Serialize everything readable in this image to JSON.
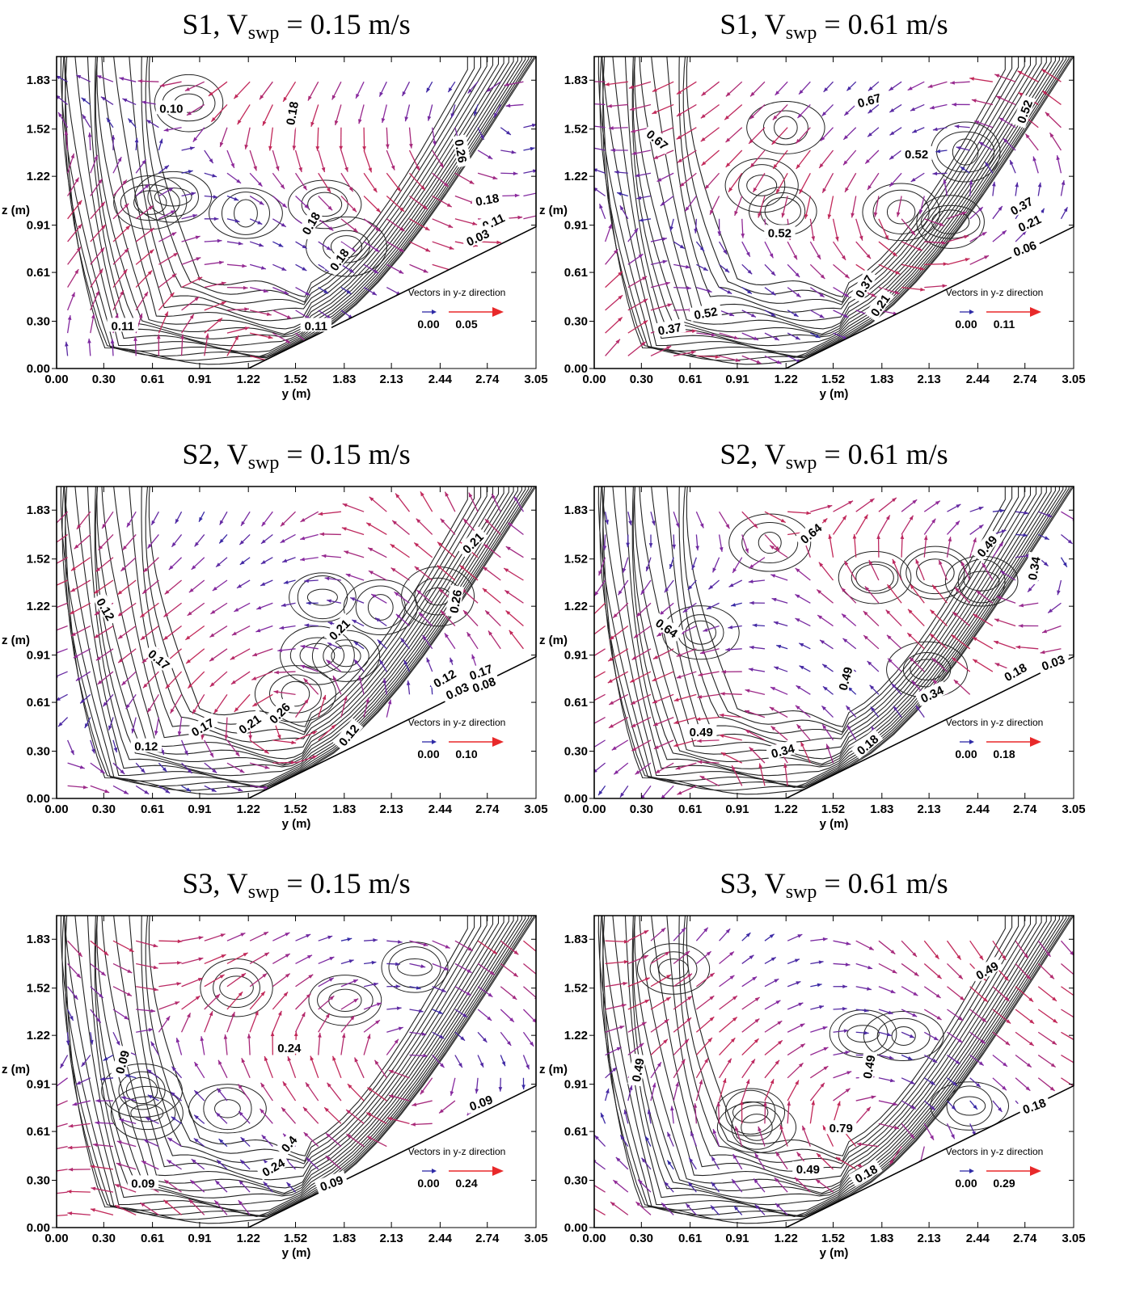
{
  "chart_data": [
    {
      "type": "contour",
      "title": "S1, Vswp = 0.15 m/s",
      "title_parts": {
        "main": "S1, V",
        "sub": "swp",
        "rest": " = 0.15 m/s"
      },
      "xlabel": "y (m)",
      "ylabel": "z (m)",
      "xlim": [
        0,
        3.05
      ],
      "ylim": [
        0,
        1.98
      ],
      "xticks": [
        "0.00",
        "0.30",
        "0.61",
        "0.91",
        "1.22",
        "1.52",
        "1.83",
        "2.13",
        "2.44",
        "2.74",
        "3.05"
      ],
      "yticks": [
        "0.00",
        "0.30",
        "0.61",
        "0.91",
        "1.22",
        "1.52",
        "1.83"
      ],
      "boundary_bottom": {
        "y_start": 1.22,
        "y_end": 3.05,
        "z_end": 0.9
      },
      "contour_labels": [
        {
          "text": "0.10",
          "y": 0.73,
          "z": 1.65,
          "rot": 0
        },
        {
          "text": "0.18",
          "y": 1.5,
          "z": 1.62,
          "rot": -80
        },
        {
          "text": "0.26",
          "y": 2.57,
          "z": 1.38,
          "rot": 80
        },
        {
          "text": "0.18",
          "y": 2.74,
          "z": 1.07,
          "rot": -10
        },
        {
          "text": "0.11",
          "y": 2.78,
          "z": 0.93,
          "rot": -25
        },
        {
          "text": "0.03",
          "y": 2.68,
          "z": 0.83,
          "rot": -25
        },
        {
          "text": "0.18",
          "y": 1.62,
          "z": 0.92,
          "rot": -60
        },
        {
          "text": "0.18",
          "y": 1.8,
          "z": 0.69,
          "rot": -55
        },
        {
          "text": "0.11",
          "y": 0.42,
          "z": 0.27,
          "rot": 0
        },
        {
          "text": "0.11",
          "y": 1.65,
          "z": 0.27,
          "rot": 0
        }
      ],
      "vector_legend": {
        "title": "Vectors in y-z direction",
        "min": "0.00",
        "max": "0.05"
      }
    },
    {
      "type": "contour",
      "title": "S1, Vswp = 0.61 m/s",
      "title_parts": {
        "main": "S1, V",
        "sub": "swp",
        "rest": " = 0.61 m/s"
      },
      "xlabel": "y (m)",
      "ylabel": "z (m)",
      "xlim": [
        0,
        3.05
      ],
      "ylim": [
        0,
        1.98
      ],
      "xticks": [
        "0.00",
        "0.30",
        "0.61",
        "0.91",
        "1.22",
        "1.52",
        "1.83",
        "2.13",
        "2.44",
        "2.74",
        "3.05"
      ],
      "yticks": [
        "0.00",
        "0.30",
        "0.61",
        "0.91",
        "1.22",
        "1.52",
        "1.83"
      ],
      "boundary_bottom": {
        "y_start": 1.22,
        "y_end": 3.05,
        "z_end": 0.9
      },
      "contour_labels": [
        {
          "text": "0.67",
          "y": 1.75,
          "z": 1.7,
          "rot": -15
        },
        {
          "text": "0.52",
          "y": 2.74,
          "z": 1.63,
          "rot": -70
        },
        {
          "text": "0.67",
          "y": 0.4,
          "z": 1.45,
          "rot": 40
        },
        {
          "text": "0.52",
          "y": 2.05,
          "z": 1.36,
          "rot": 0
        },
        {
          "text": "0.37",
          "y": 2.72,
          "z": 1.03,
          "rot": -30
        },
        {
          "text": "0.21",
          "y": 2.77,
          "z": 0.92,
          "rot": -25
        },
        {
          "text": "0.06",
          "y": 2.74,
          "z": 0.76,
          "rot": -20
        },
        {
          "text": "0.52",
          "y": 1.18,
          "z": 0.86,
          "rot": 0
        },
        {
          "text": "0.37",
          "y": 1.72,
          "z": 0.52,
          "rot": -60
        },
        {
          "text": "0.21",
          "y": 1.82,
          "z": 0.4,
          "rot": -55
        },
        {
          "text": "0.52",
          "y": 0.71,
          "z": 0.35,
          "rot": -10
        },
        {
          "text": "0.37",
          "y": 0.48,
          "z": 0.25,
          "rot": -10
        }
      ],
      "vector_legend": {
        "title": "Vectors in y-z direction",
        "min": "0.00",
        "max": "0.11"
      }
    },
    {
      "type": "contour",
      "title": "S2, Vswp = 0.15 m/s",
      "title_parts": {
        "main": "S2, V",
        "sub": "swp",
        "rest": " = 0.15 m/s"
      },
      "xlabel": "y (m)",
      "ylabel": "z (m)",
      "xlim": [
        0,
        3.05
      ],
      "ylim": [
        0,
        1.98
      ],
      "xticks": [
        "0.00",
        "0.30",
        "0.61",
        "0.91",
        "1.22",
        "1.52",
        "1.83",
        "2.13",
        "2.44",
        "2.74",
        "3.05"
      ],
      "yticks": [
        "0.00",
        "0.30",
        "0.61",
        "0.91",
        "1.22",
        "1.52",
        "1.83"
      ],
      "boundary_bottom": {
        "y_start": 1.22,
        "y_end": 3.05,
        "z_end": 0.9
      },
      "contour_labels": [
        {
          "text": "0.21",
          "y": 2.65,
          "z": 1.62,
          "rot": -45
        },
        {
          "text": "0.12",
          "y": 0.31,
          "z": 1.2,
          "rot": 60
        },
        {
          "text": "0.26",
          "y": 2.54,
          "z": 1.25,
          "rot": -80
        },
        {
          "text": "0.21",
          "y": 1.8,
          "z": 1.07,
          "rot": -45
        },
        {
          "text": "0.17",
          "y": 0.65,
          "z": 0.88,
          "rot": 40
        },
        {
          "text": "0.12",
          "y": 2.47,
          "z": 0.76,
          "rot": -30
        },
        {
          "text": "0.17",
          "y": 2.7,
          "z": 0.8,
          "rot": -20
        },
        {
          "text": "0.03",
          "y": 2.55,
          "z": 0.68,
          "rot": -25
        },
        {
          "text": "0.08",
          "y": 2.72,
          "z": 0.72,
          "rot": -20
        },
        {
          "text": "0.26",
          "y": 1.42,
          "z": 0.54,
          "rot": -45
        },
        {
          "text": "0.21",
          "y": 1.23,
          "z": 0.47,
          "rot": -35
        },
        {
          "text": "0.17",
          "y": 0.93,
          "z": 0.45,
          "rot": -30
        },
        {
          "text": "0.12",
          "y": 1.86,
          "z": 0.4,
          "rot": -50
        },
        {
          "text": "0.12",
          "y": 0.57,
          "z": 0.33,
          "rot": 0
        }
      ],
      "vector_legend": {
        "title": "Vectors in y-z direction",
        "min": "0.00",
        "max": "0.10"
      }
    },
    {
      "type": "contour",
      "title": "S2, Vswp = 0.61 m/s",
      "title_parts": {
        "main": "S2, V",
        "sub": "swp",
        "rest": " = 0.61 m/s"
      },
      "xlabel": "y (m)",
      "ylabel": "z (m)",
      "xlim": [
        0,
        3.05
      ],
      "ylim": [
        0,
        1.98
      ],
      "xticks": [
        "0.00",
        "0.30",
        "0.61",
        "0.91",
        "1.22",
        "1.52",
        "1.83",
        "2.13",
        "2.44",
        "2.74",
        "3.05"
      ],
      "yticks": [
        "0.00",
        "0.30",
        "0.61",
        "0.91",
        "1.22",
        "1.52",
        "1.83"
      ],
      "boundary_bottom": {
        "y_start": 1.22,
        "y_end": 3.05,
        "z_end": 0.9
      },
      "contour_labels": [
        {
          "text": "0.64",
          "y": 1.38,
          "z": 1.68,
          "rot": -40
        },
        {
          "text": "0.49",
          "y": 2.5,
          "z": 1.6,
          "rot": -50
        },
        {
          "text": "0.34",
          "y": 2.8,
          "z": 1.46,
          "rot": -80
        },
        {
          "text": "0.64",
          "y": 0.46,
          "z": 1.08,
          "rot": 35
        },
        {
          "text": "0.49",
          "y": 1.6,
          "z": 0.76,
          "rot": -75
        },
        {
          "text": "0.18",
          "y": 2.68,
          "z": 0.8,
          "rot": -30
        },
        {
          "text": "0.03",
          "y": 2.92,
          "z": 0.86,
          "rot": -20
        },
        {
          "text": "0.34",
          "y": 2.15,
          "z": 0.66,
          "rot": -25
        },
        {
          "text": "0.49",
          "y": 0.68,
          "z": 0.42,
          "rot": 0
        },
        {
          "text": "0.34",
          "y": 1.2,
          "z": 0.3,
          "rot": -15
        },
        {
          "text": "0.18",
          "y": 1.74,
          "z": 0.34,
          "rot": -40
        }
      ],
      "vector_legend": {
        "title": "Vectors in y-z direction",
        "min": "0.00",
        "max": "0.18"
      }
    },
    {
      "type": "contour",
      "title": "S3, Vswp = 0.15 m/s",
      "title_parts": {
        "main": "S3, V",
        "sub": "swp",
        "rest": " = 0.15 m/s"
      },
      "xlabel": "y (m)",
      "ylabel": "z (m)",
      "xlim": [
        0,
        3.05
      ],
      "ylim": [
        0,
        1.98
      ],
      "xticks": [
        "0.00",
        "0.30",
        "0.61",
        "0.91",
        "1.22",
        "1.52",
        "1.83",
        "2.13",
        "2.44",
        "2.74",
        "3.05"
      ],
      "yticks": [
        "0.00",
        "0.30",
        "0.61",
        "0.91",
        "1.22",
        "1.52",
        "1.83"
      ],
      "boundary_bottom": {
        "y_start": 1.22,
        "y_end": 3.05,
        "z_end": 0.9
      },
      "contour_labels": [
        {
          "text": "0.09",
          "y": 0.42,
          "z": 1.05,
          "rot": -75
        },
        {
          "text": "0.24",
          "y": 1.48,
          "z": 1.14,
          "rot": 0
        },
        {
          "text": "0.09",
          "y": 2.7,
          "z": 0.79,
          "rot": -20
        },
        {
          "text": "0.4",
          "y": 1.48,
          "z": 0.53,
          "rot": -50
        },
        {
          "text": "0.24",
          "y": 1.38,
          "z": 0.38,
          "rot": -30
        },
        {
          "text": "0.09",
          "y": 0.55,
          "z": 0.28,
          "rot": 0
        },
        {
          "text": "0.09",
          "y": 1.75,
          "z": 0.28,
          "rot": -20
        }
      ],
      "vector_legend": {
        "title": "Vectors in y-z direction",
        "min": "0.00",
        "max": "0.24"
      }
    },
    {
      "type": "contour",
      "title": "S3, Vswp = 0.61 m/s",
      "title_parts": {
        "main": "S3, V",
        "sub": "swp",
        "rest": " = 0.61 m/s"
      },
      "xlabel": "y (m)",
      "ylabel": "z (m)",
      "xlim": [
        0,
        3.05
      ],
      "ylim": [
        0,
        1.98
      ],
      "xticks": [
        "0.00",
        "0.30",
        "0.61",
        "0.91",
        "1.22",
        "1.52",
        "1.83",
        "2.13",
        "2.44",
        "2.74",
        "3.05"
      ],
      "yticks": [
        "0.00",
        "0.30",
        "0.61",
        "0.91",
        "1.22",
        "1.52",
        "1.83"
      ],
      "boundary_bottom": {
        "y_start": 1.22,
        "y_end": 3.05,
        "z_end": 0.9
      },
      "contour_labels": [
        {
          "text": "0.49",
          "y": 2.5,
          "z": 1.63,
          "rot": -30
        },
        {
          "text": "0.49",
          "y": 0.28,
          "z": 1.0,
          "rot": -80
        },
        {
          "text": "0.49",
          "y": 1.75,
          "z": 1.02,
          "rot": -80
        },
        {
          "text": "0.18",
          "y": 2.8,
          "z": 0.77,
          "rot": -20
        },
        {
          "text": "0.79",
          "y": 1.57,
          "z": 0.63,
          "rot": 0
        },
        {
          "text": "0.49",
          "y": 1.36,
          "z": 0.37,
          "rot": 0
        },
        {
          "text": "0.18",
          "y": 1.73,
          "z": 0.34,
          "rot": -30
        }
      ],
      "vector_legend": {
        "title": "Vectors in y-z direction",
        "min": "0.00",
        "max": "0.29"
      }
    }
  ],
  "colors": {
    "vector_low": "#2e2aa6",
    "vector_mid": "#8a2aa0",
    "vector_high": "#e8292a",
    "contour": "#222222"
  }
}
